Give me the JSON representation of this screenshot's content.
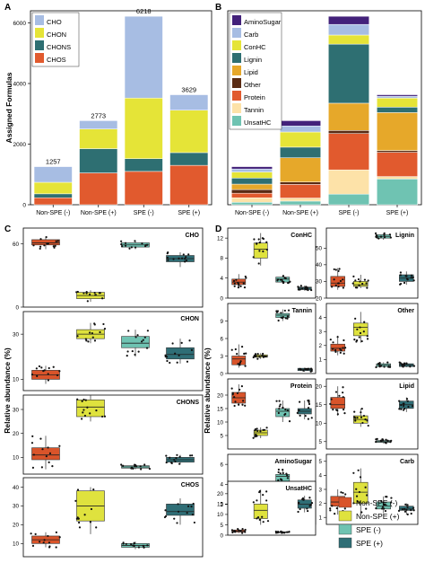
{
  "colors": {
    "CHO": "#a7bde3",
    "CHON": "#e5e437",
    "CHONS": "#2e6f72",
    "CHOS": "#e15a2e",
    "AminoSugar": "#43217a",
    "Carb": "#a7bde3",
    "ConHC": "#e5e437",
    "Lignin": "#2e6f72",
    "Lipid": "#e6a82a",
    "Other": "#5a2b13",
    "Protein": "#e15a2e",
    "Tannin": "#fde2a8",
    "UnsatHC": "#6fc3b2",
    "NonSPEneg": "#d9542a",
    "NonSPEpos": "#dfe23e",
    "SPEneg": "#6fc3b2",
    "SPEpos": "#2f6e76"
  },
  "chart_data": [
    {
      "panel": "A",
      "type": "bar",
      "ylabel": "Assigned Formulas",
      "ylim": [
        0,
        6400
      ],
      "yticks": [
        0,
        2000,
        4000,
        6000
      ],
      "categories": [
        "Non-SPE (-)",
        "Non-SPE (+)",
        "SPE (-)",
        "SPE (+)"
      ],
      "totals": [
        "1257",
        "2773",
        "6218",
        "3629"
      ],
      "series": [
        {
          "name": "CHOS",
          "values": [
            230,
            1050,
            1100,
            1300
          ]
        },
        {
          "name": "CHONS",
          "values": [
            130,
            800,
            420,
            420
          ]
        },
        {
          "name": "CHON",
          "values": [
            380,
            650,
            2000,
            1400
          ]
        },
        {
          "name": "CHO",
          "values": [
            517,
            273,
            2698,
            509
          ]
        }
      ],
      "legend": [
        "CHO",
        "CHON",
        "CHONS",
        "CHOS"
      ]
    },
    {
      "panel": "B",
      "type": "bar",
      "categories": [
        "Non-SPE (-)",
        "Non-SPE (+)",
        "SPE (-)",
        "SPE (+)"
      ],
      "ylim": [
        0,
        6400
      ],
      "series": [
        {
          "name": "UnsatHC",
          "values": [
            80,
            120,
            350,
            850
          ]
        },
        {
          "name": "Tannin",
          "values": [
            150,
            100,
            800,
            80
          ]
        },
        {
          "name": "Protein",
          "values": [
            150,
            450,
            1200,
            800
          ]
        },
        {
          "name": "Other",
          "values": [
            120,
            80,
            100,
            60
          ]
        },
        {
          "name": "Lipid",
          "values": [
            180,
            800,
            900,
            1250
          ]
        },
        {
          "name": "Lignin",
          "values": [
            200,
            350,
            1950,
            180
          ]
        },
        {
          "name": "ConHC",
          "values": [
            200,
            500,
            300,
            300
          ]
        },
        {
          "name": "Carb",
          "values": [
            100,
            200,
            350,
            60
          ]
        },
        {
          "name": "AminoSugar",
          "values": [
            77,
            173,
            268,
            49
          ]
        }
      ],
      "legend": [
        "AminoSugar",
        "Carb",
        "ConHC",
        "Lignin",
        "Lipid",
        "Other",
        "Protein",
        "Tannin",
        "UnsatHC"
      ]
    },
    {
      "panel": "C",
      "type": "boxplot",
      "ylabel": "Relative abundance (%)",
      "groups": [
        "Non-SPE (-)",
        "Non-SPE (+)",
        "SPE (-)",
        "SPE (+)"
      ],
      "facets": [
        {
          "name": "CHO",
          "ylim": [
            0,
            75
          ],
          "yticks": [
            0,
            60
          ],
          "boxes": [
            [
              55,
              59,
              61,
              64,
              67
            ],
            [
              5,
              8,
              11,
              14,
              16
            ],
            [
              55,
              57,
              59,
              61,
              63
            ],
            [
              38,
              43,
              46,
              49,
              52
            ]
          ]
        },
        {
          "name": "CHON",
          "ylim": [
            5,
            40
          ],
          "yticks": [
            10,
            30
          ],
          "boxes": [
            [
              8,
              10,
              12,
              14,
              16
            ],
            [
              26,
              28,
              30,
              32,
              35
            ],
            [
              20,
              24,
              26,
              29,
              32
            ],
            [
              17,
              19,
              21,
              24,
              28
            ]
          ]
        },
        {
          "name": "CHONS",
          "ylim": [
            3,
            36
          ],
          "yticks": [
            10,
            20,
            30
          ],
          "boxes": [
            [
              5,
              9,
              11,
              14,
              19
            ],
            [
              25,
              27,
              31,
              34,
              36
            ],
            [
              5,
              5.5,
              6,
              6.5,
              7
            ],
            [
              7,
              8,
              9,
              10,
              11
            ]
          ]
        },
        {
          "name": "CHOS",
          "ylim": [
            3,
            45
          ],
          "yticks": [
            10,
            20,
            30,
            40
          ],
          "boxes": [
            [
              8,
              10,
              12,
              14,
              16
            ],
            [
              15,
              22,
              30,
              38,
              40
            ],
            [
              7,
              8,
              9,
              10,
              11
            ],
            [
              20,
              25,
              27,
              31,
              34
            ]
          ]
        }
      ]
    },
    {
      "panel": "D",
      "type": "boxplot",
      "ylabel": "Relative abundance (%)",
      "groups": [
        "Non-SPE (-)",
        "Non-SPE (+)",
        "SPE (-)",
        "SPE (+)"
      ],
      "facets": [
        {
          "name": "ConHC",
          "ylim": [
            0,
            14
          ],
          "yticks": [
            0,
            4,
            8,
            12
          ],
          "boxes": [
            [
              2,
              2.7,
              3.2,
              3.8,
              4.8
            ],
            [
              6.5,
              8,
              9.8,
              11,
              13
            ],
            [
              3,
              3.2,
              3.8,
              4.2,
              4.5
            ],
            [
              1.5,
              1.7,
              2,
              2.2,
              2.5
            ]
          ]
        },
        {
          "name": "Lignin",
          "ylim": [
            20,
            62
          ],
          "yticks": [
            20,
            30,
            40,
            50
          ],
          "boxes": [
            [
              25,
              27,
              29,
              33,
              38
            ],
            [
              26,
              27,
              28,
              30,
              34
            ],
            [
              55,
              56,
              57,
              58,
              59
            ],
            [
              28,
              30,
              32,
              34,
              36
            ]
          ]
        },
        {
          "name": "Tannin",
          "ylim": [
            0,
            12
          ],
          "yticks": [
            0,
            3,
            6,
            9
          ],
          "boxes": [
            [
              1,
              1.5,
              2.5,
              3,
              5
            ],
            [
              2.5,
              2.8,
              3,
              3.2,
              3.5
            ],
            [
              9,
              9.6,
              10,
              10.3,
              11
            ],
            [
              0.3,
              0.5,
              0.7,
              0.9,
              1
            ]
          ]
        },
        {
          "name": "Other",
          "ylim": [
            0,
            5
          ],
          "yticks": [
            1,
            2,
            3,
            4
          ],
          "boxes": [
            [
              1.3,
              1.6,
              1.8,
              2.1,
              2.7
            ],
            [
              2.2,
              2.7,
              3.3,
              3.6,
              4.4
            ],
            [
              0.45,
              0.5,
              0.6,
              0.7,
              0.8
            ],
            [
              0.45,
              0.5,
              0.6,
              0.7,
              0.8
            ]
          ]
        },
        {
          "name": "Protein",
          "ylim": [
            0,
            26
          ],
          "yticks": [
            5,
            10,
            15,
            20
          ],
          "boxes": [
            [
              16,
              17,
              19,
              21,
              24
            ],
            [
              4,
              5,
              6,
              7,
              8
            ],
            [
              10,
              12,
              14,
              15,
              18
            ],
            [
              11,
              13,
              14,
              15,
              18
            ]
          ]
        },
        {
          "name": "Lipid",
          "ylim": [
            3,
            22
          ],
          "yticks": [
            5,
            10,
            15,
            20
          ],
          "boxes": [
            [
              12,
              14,
              15,
              17,
              20
            ],
            [
              9,
              10,
              11,
              12,
              14
            ],
            [
              4.5,
              4.8,
              5,
              5.3,
              5.8
            ],
            [
              13,
              14,
              15,
              16,
              17
            ]
          ]
        },
        {
          "name": "AminoSugar",
          "ylim": [
            0,
            7
          ],
          "yticks": [
            2,
            4,
            6
          ],
          "boxes": [
            [
              1.2,
              2,
              2.5,
              3,
              3.8
            ],
            [
              0.7,
              1,
              1.5,
              2,
              3
            ],
            [
              3.8,
              4.3,
              4.8,
              5,
              5.5
            ],
            [
              1.7,
              2.3,
              2.7,
              3,
              3.5
            ]
          ]
        },
        {
          "name": "Carb",
          "ylim": [
            0.5,
            5.5
          ],
          "yticks": [
            1,
            2,
            3,
            4,
            5
          ],
          "boxes": [
            [
              1.2,
              1.8,
              2.1,
              2.5,
              3
            ],
            [
              1.1,
              2,
              2.8,
              3.5,
              4.5
            ],
            [
              1.3,
              1.6,
              1.8,
              2.1,
              2.5
            ],
            [
              1.2,
              1.5,
              1.6,
              1.8,
              2
            ]
          ]
        },
        {
          "name": "UnsatHC",
          "ylim": [
            0,
            26
          ],
          "yticks": [
            0,
            5,
            10,
            15,
            20
          ],
          "boxes": [
            [
              1,
              1.5,
              2,
              2.5,
              3
            ],
            [
              5,
              8,
              12,
              15,
              22
            ],
            [
              1,
              1.2,
              1.4,
              1.6,
              1.8
            ],
            [
              11,
              13,
              15,
              17,
              19
            ]
          ]
        }
      ]
    }
  ],
  "legendD": [
    {
      "key": "NonSPEneg",
      "label": "Non-SPE (-)"
    },
    {
      "key": "NonSPEpos",
      "label": "Non-SPE (+)"
    },
    {
      "key": "SPEneg",
      "label": "SPE (-)"
    },
    {
      "key": "SPEpos",
      "label": "SPE (+)"
    }
  ]
}
